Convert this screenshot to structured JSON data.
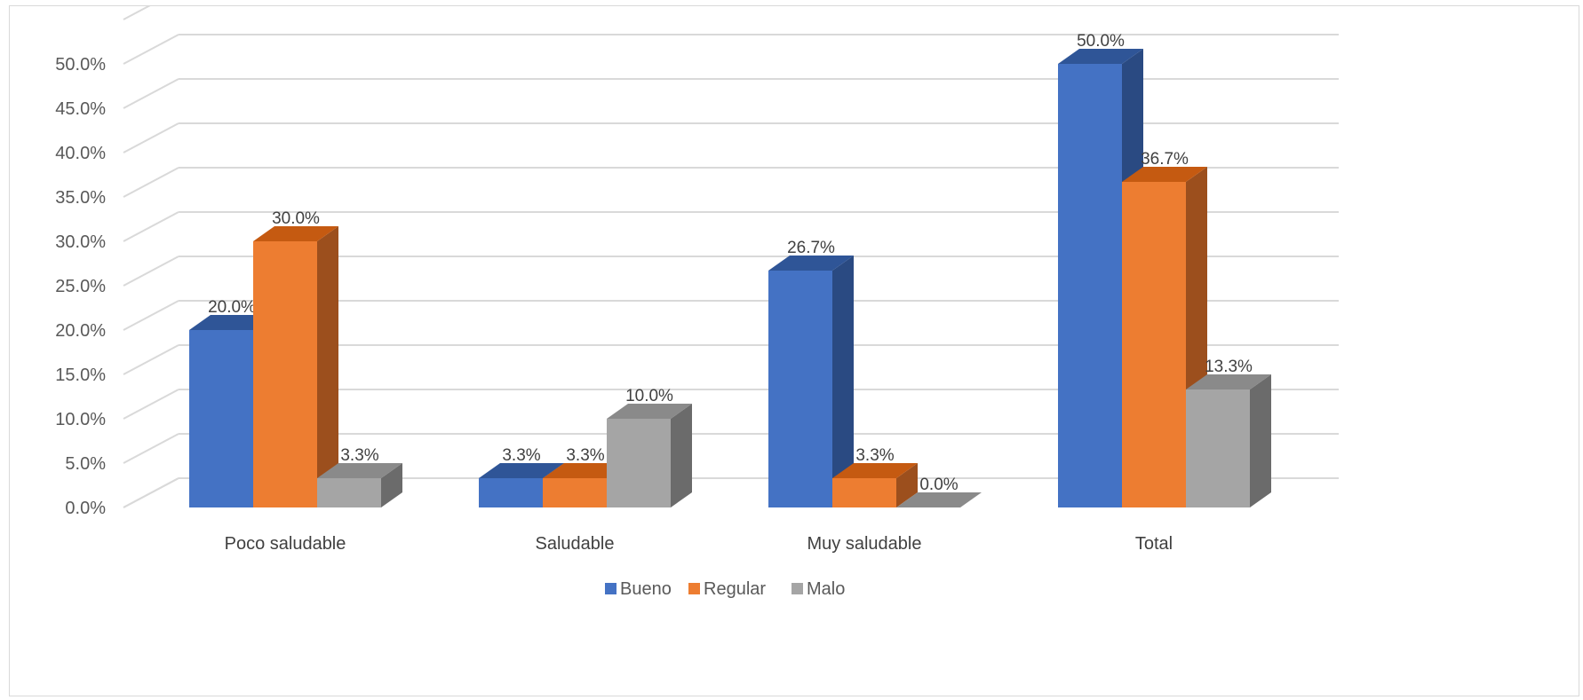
{
  "chart_data": {
    "type": "bar",
    "title": "",
    "xlabel": "",
    "ylabel": "",
    "ylim": [
      0,
      55
    ],
    "y_ticks": [
      "0.0%",
      "5.0%",
      "10.0%",
      "15.0%",
      "20.0%",
      "25.0%",
      "30.0%",
      "35.0%",
      "40.0%",
      "45.0%",
      "50.0%"
    ],
    "categories": [
      "Poco saludable",
      "Saludable",
      "Muy saludable",
      "Total"
    ],
    "series": [
      {
        "name": "Bueno",
        "values": [
          20.0,
          3.3,
          26.7,
          50.0
        ],
        "labels": [
          "20.0%",
          "3.3%",
          "26.7%",
          "50.0%"
        ]
      },
      {
        "name": "Regular",
        "values": [
          30.0,
          3.3,
          3.3,
          36.7
        ],
        "labels": [
          "30.0%",
          "3.3%",
          "3.3%",
          "36.7%"
        ]
      },
      {
        "name": "Malo",
        "values": [
          3.3,
          10.0,
          0.0,
          13.3
        ],
        "labels": [
          "3.3%",
          "10.0%",
          "0.0%",
          "13.3%"
        ]
      }
    ],
    "colors": {
      "Bueno": {
        "front": "#4472c4",
        "side": "#2a4a82",
        "top": "#2f5597"
      },
      "Regular": {
        "front": "#ed7d31",
        "side": "#9c4f1d",
        "top": "#c55a11"
      },
      "Malo": {
        "front": "#a5a5a5",
        "side": "#6b6b6b",
        "top": "#8a8a8a"
      }
    },
    "grid": true,
    "three_d": true,
    "legend_position": "bottom"
  }
}
